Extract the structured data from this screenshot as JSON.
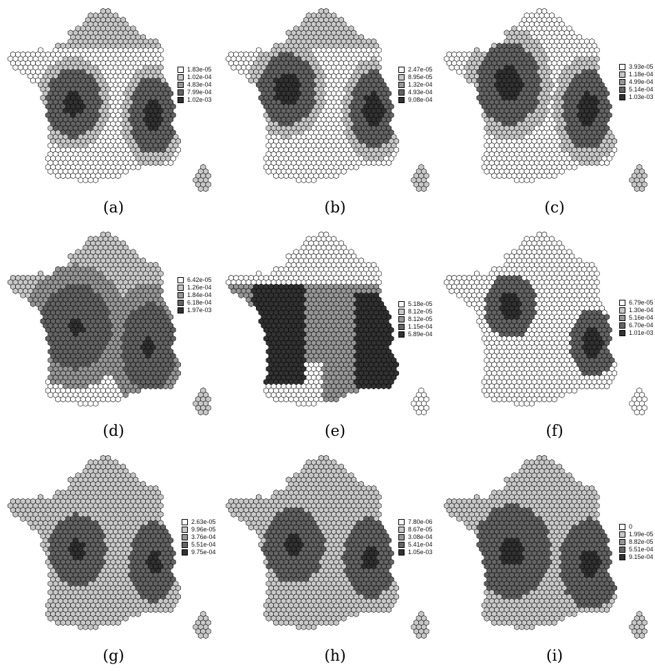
{
  "shade_colors": [
    "#ffffff",
    "#c8c8c8",
    "#969696",
    "#646464",
    "#323232"
  ],
  "panels": [
    {
      "label": "(a)",
      "legend": [
        "1.83e-05",
        "1.02e-04",
        "4.83e-04",
        "7.99e-04",
        "1.02e-03"
      ]
    },
    {
      "label": "(b)",
      "legend": [
        "2.47e-05",
        "8.95e-05",
        "1.32e-04",
        "4.93e-04",
        "9.08e-04"
      ]
    },
    {
      "label": "(c)",
      "legend": [
        "3.93e-05",
        "1.18e-04",
        "4.99e-04",
        "5.14e-04",
        "1.03e-03"
      ]
    },
    {
      "label": "(d)",
      "legend": [
        "6.42e-05",
        "1.26e-04",
        "1.84e-04",
        "6.18e-04",
        "1.97e-03"
      ]
    },
    {
      "label": "(e)",
      "legend": [
        "5.18e-05",
        "8.12e-05",
        "8.12e-05",
        "1.15e-04",
        "5.89e-04"
      ]
    },
    {
      "label": "(f)",
      "legend": [
        "6.79e-05",
        "1.30e-04",
        "5.16e-04",
        "6.70e-04",
        "1.01e-03"
      ]
    },
    {
      "label": "(g)",
      "legend": [
        "2.63e-05",
        "9.96e-05",
        "3.76e-04",
        "5.51e-04",
        "9.75e-04"
      ]
    },
    {
      "label": "(h)",
      "legend": [
        "7.80e-06",
        "8.67e-05",
        "3.08e-04",
        "5.41e-04",
        "1.05e-03"
      ]
    },
    {
      "label": "(i)",
      "legend": [
        "0",
        "1.99e-05",
        "8.82e-05",
        "5.51e-04",
        "9.15e-04"
      ]
    }
  ]
}
